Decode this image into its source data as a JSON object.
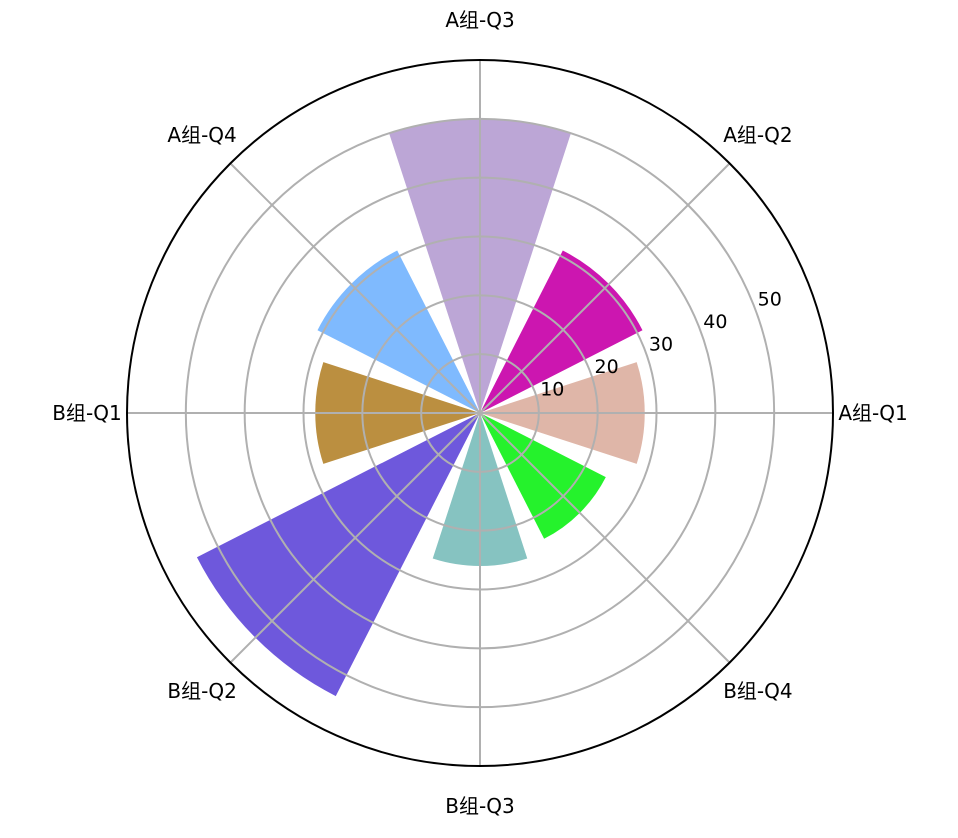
{
  "chart_data": {
    "type": "polar-bar",
    "categories": [
      "A组-Q1",
      "A组-Q2",
      "A组-Q3",
      "A组-Q4",
      "B组-Q1",
      "B组-Q2",
      "B组-Q3",
      "B组-Q4"
    ],
    "values": [
      28,
      31,
      50,
      31,
      28,
      54,
      26,
      24
    ],
    "colors": [
      "#dfb6a8",
      "#cc16b0",
      "#bca6d6",
      "#7fbafe",
      "#bb8f40",
      "#6e58dc",
      "#86c3c1",
      "#25f22c"
    ],
    "r_ticks": [
      10,
      20,
      30,
      40,
      50
    ],
    "r_range": [
      0,
      60
    ],
    "grid": true,
    "start_angle_deg": 0,
    "direction": "counterclockwise"
  }
}
